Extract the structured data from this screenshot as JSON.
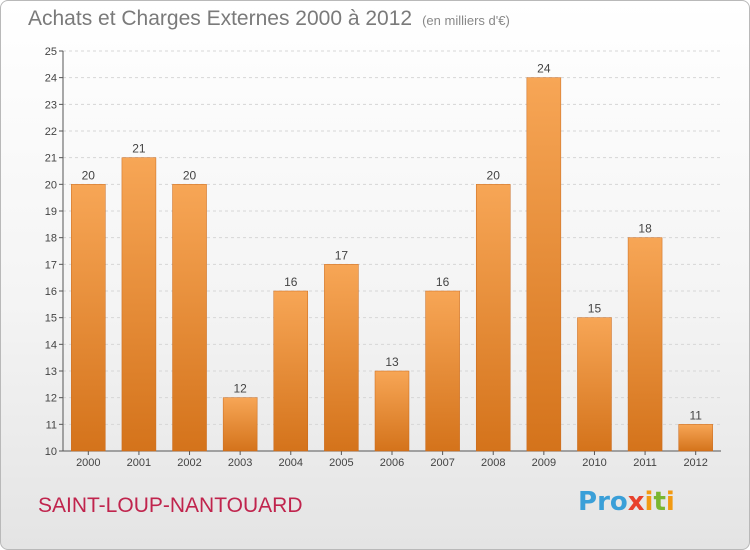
{
  "header": {
    "title": "Achats et Charges Externes 2000 à 2012",
    "subtitle": "(en milliers d'€)"
  },
  "footer": {
    "location": "SAINT-LOUP-NANTOUARD",
    "logo": "Proxiti"
  },
  "colors": {
    "bar_top": "#f7a656",
    "bar_bottom": "#d4731b",
    "grid": "#d6d6d6",
    "location_text": "#c0244d"
  },
  "chart_data": {
    "type": "bar",
    "title": "Achats et Charges Externes 2000 à 2012",
    "subtitle": "(en milliers d'€)",
    "categories": [
      "2000",
      "2001",
      "2002",
      "2003",
      "2004",
      "2005",
      "2006",
      "2007",
      "2008",
      "2009",
      "2010",
      "2011",
      "2012"
    ],
    "values": [
      20,
      21,
      20,
      12,
      16,
      17,
      13,
      16,
      20,
      24,
      15,
      18,
      11
    ],
    "xlabel": "",
    "ylabel": "",
    "ylim": [
      10,
      25
    ],
    "yticks": [
      10,
      11,
      12,
      13,
      14,
      15,
      16,
      17,
      18,
      19,
      20,
      21,
      22,
      23,
      24,
      25
    ],
    "grid": "horizontal-dashed",
    "data_labels": true
  }
}
